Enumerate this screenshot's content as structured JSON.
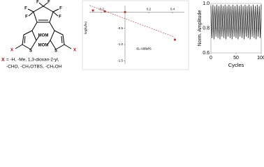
{
  "structure": {
    "atoms": [
      "F",
      "F",
      "F",
      "F",
      "F",
      "F",
      "S",
      "S",
      "MOM",
      "MOM",
      "X",
      "X"
    ],
    "substituent_symbol": "X",
    "legend_lines": [
      "= -H, -Me, 1,3-dioxan-2-yl,",
      "-CHO, -CH₂OTBS, -CH₂OH"
    ]
  },
  "chart_data": [
    {
      "type": "scatter",
      "x_label": "σₚ-values",
      "y_label": "log(kₓ/kₕ)",
      "x": [
        -0.27,
        -0.17,
        0,
        0.42
      ],
      "values": [
        0.05,
        0.02,
        0,
        -0.85
      ],
      "color": "#c0392b",
      "xlim": [
        -0.3,
        0.5
      ],
      "xticks": [
        -0.2,
        0.2,
        0.4
      ],
      "ylim": [
        -1.6,
        0.2
      ],
      "yticks": [
        -0.5,
        {
          "value": -1,
          "label": "-1.0"
        },
        -1.5
      ]
    },
    {
      "type": "line",
      "x_label": "Cycles",
      "y_label": "Norm. Amplitude",
      "color": "#000000",
      "x": [
        0,
        2,
        4,
        6,
        8,
        10,
        12,
        14,
        16,
        18,
        20,
        22,
        24,
        26,
        28,
        30,
        32,
        34,
        36,
        38,
        40,
        42,
        44,
        46,
        48,
        50,
        52,
        54,
        56,
        58,
        60,
        62,
        64,
        66,
        68,
        70,
        72,
        74,
        76,
        78,
        80,
        82,
        84,
        86,
        88,
        90,
        92,
        94,
        96,
        98,
        100
      ],
      "values": [
        0.98,
        0.72,
        0.99,
        0.71,
        0.98,
        0.73,
        0.99,
        0.72,
        0.98,
        0.71,
        0.99,
        0.73,
        0.98,
        0.72,
        0.99,
        0.71,
        0.98,
        0.73,
        0.99,
        0.72,
        0.98,
        0.71,
        0.99,
        0.73,
        0.98,
        0.72,
        0.99,
        0.71,
        0.98,
        0.73,
        0.99,
        0.72,
        0.98,
        0.71,
        0.99,
        0.73,
        0.98,
        0.72,
        0.99,
        0.71,
        0.98,
        0.73,
        0.99,
        0.72,
        0.98,
        0.71,
        0.99,
        0.73,
        0.98,
        0.72,
        0.99
      ],
      "xlim": [
        0,
        100
      ],
      "xticks": [
        0,
        50,
        100
      ],
      "ylim": [
        0.6,
        1
      ],
      "yticks": [
        0.6,
        0.8,
        {
          "value": 1,
          "label": "1.0"
        }
      ],
      "grid": true
    }
  ]
}
